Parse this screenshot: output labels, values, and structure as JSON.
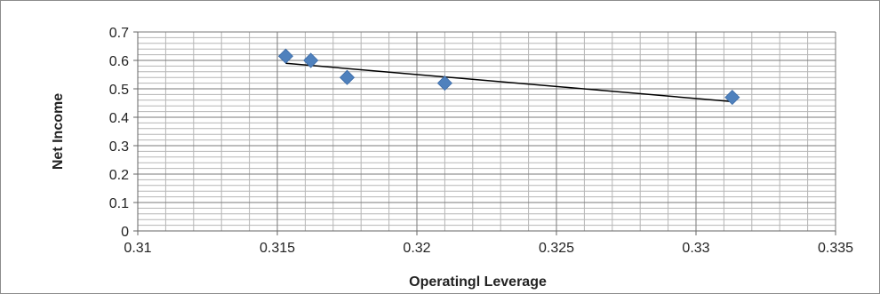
{
  "chart_data": {
    "type": "scatter",
    "title": "",
    "xlabel": "Operatingl Leverage",
    "ylabel": "Net Income",
    "xlim": [
      0.31,
      0.335
    ],
    "ylim": [
      0,
      0.7
    ],
    "x_ticks": [
      0.31,
      0.315,
      0.32,
      0.325,
      0.33,
      0.335
    ],
    "x_tick_labels": [
      "0.31",
      "0.315",
      "0.32",
      "0.325",
      "0.33",
      "0.335"
    ],
    "y_ticks": [
      0,
      0.1,
      0.2,
      0.3,
      0.4,
      0.5,
      0.6,
      0.7
    ],
    "y_tick_labels": [
      "0",
      "0.1",
      "0.2",
      "0.3",
      "0.4",
      "0.5",
      "0.6",
      "0.7"
    ],
    "grid": true,
    "legend": "none",
    "marker": "diamond",
    "marker_color": "#4f81bd",
    "trendline_color": "#000000",
    "series": [
      {
        "x": [
          0.3153,
          0.3162,
          0.3175,
          0.321,
          0.3313
        ],
        "y": [
          0.615,
          0.6,
          0.54,
          0.52,
          0.47
        ]
      }
    ],
    "trendline": {
      "type": "linear",
      "x": [
        0.3153,
        0.3313
      ],
      "y": [
        0.59,
        0.455
      ]
    }
  }
}
